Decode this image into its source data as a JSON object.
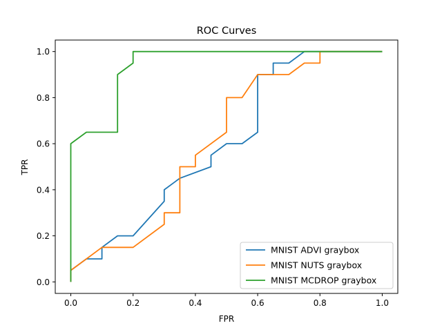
{
  "chart_data": {
    "type": "line",
    "title": "ROC Curves",
    "xlabel": "FPR",
    "ylabel": "TPR",
    "xlim": [
      -0.05,
      1.05
    ],
    "ylim": [
      -0.05,
      1.05
    ],
    "xticks": [
      0.0,
      0.2,
      0.4,
      0.6,
      0.8,
      1.0
    ],
    "yticks": [
      0.0,
      0.2,
      0.4,
      0.6,
      0.8,
      1.0
    ],
    "xtick_labels": [
      "0.0",
      "0.2",
      "0.4",
      "0.6",
      "0.8",
      "1.0"
    ],
    "ytick_labels": [
      "0.0",
      "0.2",
      "0.4",
      "0.6",
      "0.8",
      "1.0"
    ],
    "grid": false,
    "legend_position": "lower-right",
    "series": [
      {
        "name": "MNIST ADVI graybox",
        "color": "#1f77b4",
        "x": [
          0.0,
          0.0,
          0.05,
          0.1,
          0.1,
          0.15,
          0.2,
          0.3,
          0.3,
          0.35,
          0.45,
          0.45,
          0.5,
          0.55,
          0.6,
          0.6,
          0.65,
          0.65,
          0.7,
          0.75,
          1.0
        ],
        "y": [
          0.0,
          0.05,
          0.1,
          0.1,
          0.15,
          0.2,
          0.2,
          0.35,
          0.4,
          0.45,
          0.5,
          0.55,
          0.6,
          0.6,
          0.65,
          0.9,
          0.9,
          0.95,
          0.95,
          1.0,
          1.0
        ]
      },
      {
        "name": "MNIST NUTS graybox",
        "color": "#ff7f0e",
        "x": [
          0.0,
          0.0,
          0.05,
          0.1,
          0.2,
          0.3,
          0.3,
          0.35,
          0.35,
          0.4,
          0.4,
          0.5,
          0.5,
          0.55,
          0.6,
          0.7,
          0.75,
          0.8,
          0.8,
          1.0
        ],
        "y": [
          0.0,
          0.05,
          0.1,
          0.15,
          0.15,
          0.25,
          0.3,
          0.3,
          0.5,
          0.5,
          0.55,
          0.65,
          0.8,
          0.8,
          0.9,
          0.9,
          0.95,
          0.95,
          1.0,
          1.0
        ]
      },
      {
        "name": "MNIST MCDROP graybox",
        "color": "#2ca02c",
        "x": [
          0.0,
          0.0,
          0.05,
          0.15,
          0.15,
          0.2,
          0.2,
          1.0
        ],
        "y": [
          0.0,
          0.6,
          0.65,
          0.65,
          0.9,
          0.95,
          1.0,
          1.0
        ]
      }
    ]
  }
}
